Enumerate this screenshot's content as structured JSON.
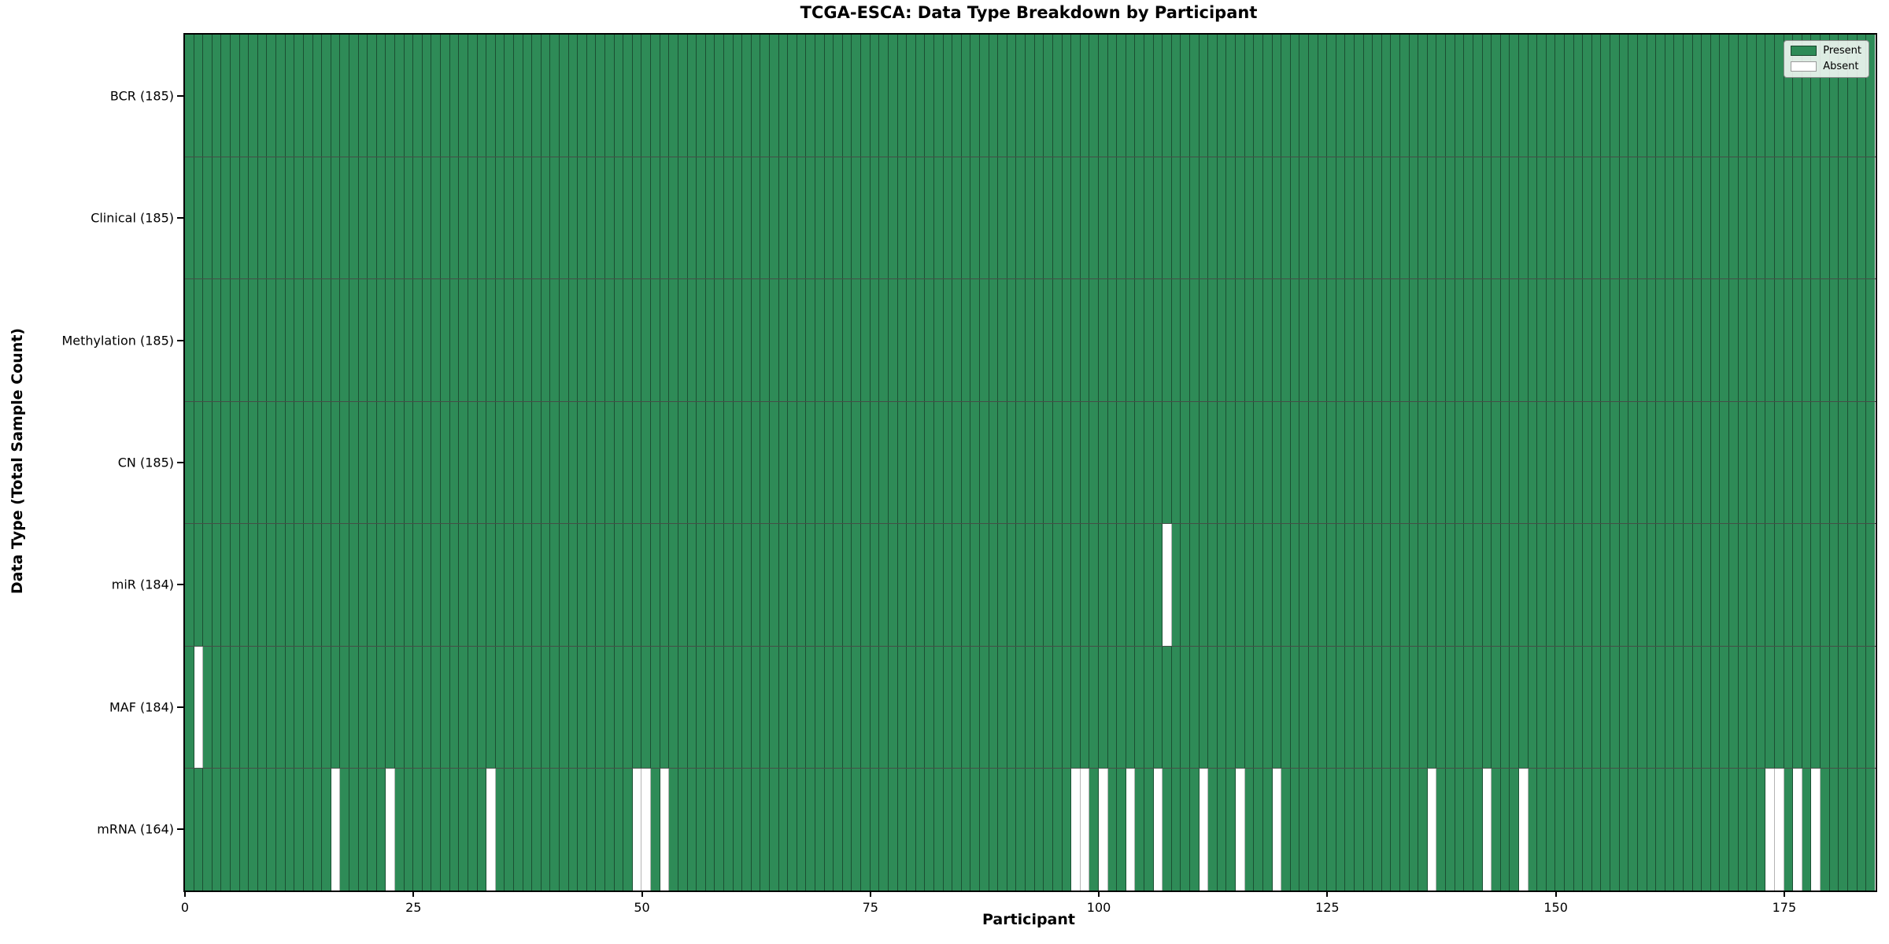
{
  "chart_data": {
    "type": "heatmap",
    "title": "TCGA-ESCA: Data Type Breakdown by Participant",
    "xlabel": "Participant",
    "ylabel": "Data Type (Total Sample Count)",
    "n_participants": 185,
    "x_ticks": [
      0,
      25,
      50,
      75,
      100,
      125,
      150,
      175
    ],
    "x_range": [
      0,
      185
    ],
    "grid": false,
    "legend_position": "upper right",
    "rows": [
      {
        "label": "BCR (185)",
        "data_type": "BCR",
        "present_count": 185,
        "absent_participants": []
      },
      {
        "label": "Clinical (185)",
        "data_type": "Clinical",
        "present_count": 185,
        "absent_participants": []
      },
      {
        "label": "Methylation (185)",
        "data_type": "Methylation",
        "present_count": 185,
        "absent_participants": []
      },
      {
        "label": "CN (185)",
        "data_type": "CN",
        "present_count": 185,
        "absent_participants": []
      },
      {
        "label": "miR (184)",
        "data_type": "miR",
        "present_count": 184,
        "absent_participants": [
          107
        ]
      },
      {
        "label": "MAF (184)",
        "data_type": "MAF",
        "present_count": 184,
        "absent_participants": [
          1
        ]
      },
      {
        "label": "mRNA (164)",
        "data_type": "mRNA",
        "present_count": 164,
        "absent_participants": [
          16,
          22,
          33,
          49,
          50,
          52,
          97,
          98,
          100,
          103,
          106,
          111,
          115,
          119,
          136,
          142,
          146,
          173,
          174,
          176,
          178
        ]
      }
    ],
    "legend": [
      {
        "label": "Present",
        "color": "#2e8b57"
      },
      {
        "label": "Absent",
        "color": "#ffffff"
      }
    ],
    "colors": {
      "present": "#2e8b57",
      "absent": "#ffffff",
      "cell_edge": "#26402f",
      "axis": "#000000"
    }
  }
}
